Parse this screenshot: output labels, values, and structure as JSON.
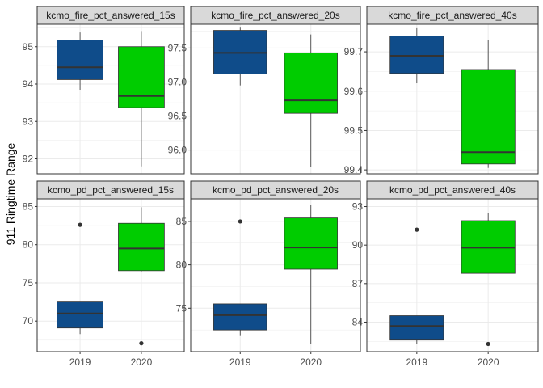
{
  "figure": {
    "y_axis_title": "911 Ringtime Range",
    "colors": {
      "2019": "#0f4c8a",
      "2020": "#00cc00",
      "strip_bg": "#d9d9d9",
      "grid": "#ebebeb",
      "frame": "#333333",
      "tick_text": "#4d4d4d"
    }
  },
  "chart_data": [
    {
      "type": "boxplot",
      "title": "kcmo_fire_pct_answered_15s",
      "categories": [
        "2019",
        "2020"
      ],
      "ylim": [
        91.6,
        95.6
      ],
      "yticks": [
        92,
        93,
        94,
        95
      ],
      "ytick_labels": [
        "92",
        "93",
        "94",
        "95"
      ],
      "boxes": [
        {
          "x": "2019",
          "whisker_low": 93.85,
          "q1": 94.12,
          "median": 94.45,
          "q3": 95.18,
          "whisker_high": 95.38,
          "outliers": []
        },
        {
          "x": "2020",
          "whisker_low": 91.8,
          "q1": 93.37,
          "median": 93.68,
          "q3": 95.0,
          "whisker_high": 95.42,
          "outliers": []
        }
      ],
      "grid": true
    },
    {
      "type": "boxplot",
      "title": "kcmo_fire_pct_answered_20s",
      "categories": [
        "2019",
        "2020"
      ],
      "ylim": [
        95.65,
        97.85
      ],
      "yticks": [
        96.0,
        96.5,
        97.0,
        97.5
      ],
      "ytick_labels": [
        "96.0",
        "96.5",
        "97.0",
        "97.5"
      ],
      "boxes": [
        {
          "x": "2019",
          "whisker_low": 96.95,
          "q1": 97.12,
          "median": 97.43,
          "q3": 97.76,
          "whisker_high": 97.8,
          "outliers": []
        },
        {
          "x": "2020",
          "whisker_low": 95.75,
          "q1": 96.54,
          "median": 96.73,
          "q3": 97.43,
          "whisker_high": 97.7,
          "outliers": []
        }
      ],
      "grid": true
    },
    {
      "type": "boxplot",
      "title": "kcmo_fire_pct_answered_40s",
      "categories": [
        "2019",
        "2020"
      ],
      "ylim": [
        99.39,
        99.77
      ],
      "yticks": [
        99.4,
        99.5,
        99.6,
        99.7
      ],
      "ytick_labels": [
        "99.4",
        "99.5",
        "99.6",
        "99.7"
      ],
      "boxes": [
        {
          "x": "2019",
          "whisker_low": 99.62,
          "q1": 99.645,
          "median": 99.69,
          "q3": 99.74,
          "whisker_high": 99.76,
          "outliers": []
        },
        {
          "x": "2020",
          "whisker_low": 99.405,
          "q1": 99.415,
          "median": 99.445,
          "q3": 99.655,
          "whisker_high": 99.73,
          "outliers": []
        }
      ],
      "grid": true
    },
    {
      "type": "boxplot",
      "title": "kcmo_pd_pct_answered_15s",
      "categories": [
        "2019",
        "2020"
      ],
      "ylim": [
        66.0,
        86.0
      ],
      "yticks": [
        70,
        75,
        80,
        85
      ],
      "ytick_labels": [
        "70",
        "75",
        "80",
        "85"
      ],
      "boxes": [
        {
          "x": "2019",
          "whisker_low": 68.3,
          "q1": 69.1,
          "median": 71.0,
          "q3": 72.6,
          "whisker_high": 72.6,
          "outliers": [
            82.6
          ]
        },
        {
          "x": "2020",
          "whisker_low": 76.5,
          "q1": 76.6,
          "median": 79.5,
          "q3": 82.8,
          "whisker_high": 84.9,
          "outliers": [
            67.1
          ]
        }
      ],
      "grid": true
    },
    {
      "type": "boxplot",
      "title": "kcmo_pd_pct_answered_20s",
      "categories": [
        "2019",
        "2020"
      ],
      "ylim": [
        70.0,
        87.6
      ],
      "yticks": [
        75,
        80,
        85
      ],
      "ytick_labels": [
        "75",
        "80",
        "85"
      ],
      "boxes": [
        {
          "x": "2019",
          "whisker_low": 71.8,
          "q1": 72.5,
          "median": 74.2,
          "q3": 75.5,
          "whisker_high": 75.5,
          "outliers": [
            85.0
          ]
        },
        {
          "x": "2020",
          "whisker_low": 70.9,
          "q1": 79.5,
          "median": 82.0,
          "q3": 85.4,
          "whisker_high": 86.9,
          "outliers": []
        }
      ],
      "grid": true
    },
    {
      "type": "boxplot",
      "title": "kcmo_pd_pct_answered_40s",
      "categories": [
        "2019",
        "2020"
      ],
      "ylim": [
        81.7,
        93.6
      ],
      "yticks": [
        84,
        87,
        90,
        93
      ],
      "ytick_labels": [
        "84",
        "87",
        "90",
        "93"
      ],
      "boxes": [
        {
          "x": "2019",
          "whisker_low": 82.3,
          "q1": 82.6,
          "median": 83.7,
          "q3": 84.5,
          "whisker_high": 84.5,
          "outliers": [
            91.2
          ]
        },
        {
          "x": "2020",
          "whisker_low": 87.8,
          "q1": 87.8,
          "median": 89.8,
          "q3": 91.9,
          "whisker_high": 92.5,
          "outliers": [
            82.3
          ]
        }
      ],
      "grid": true
    }
  ]
}
